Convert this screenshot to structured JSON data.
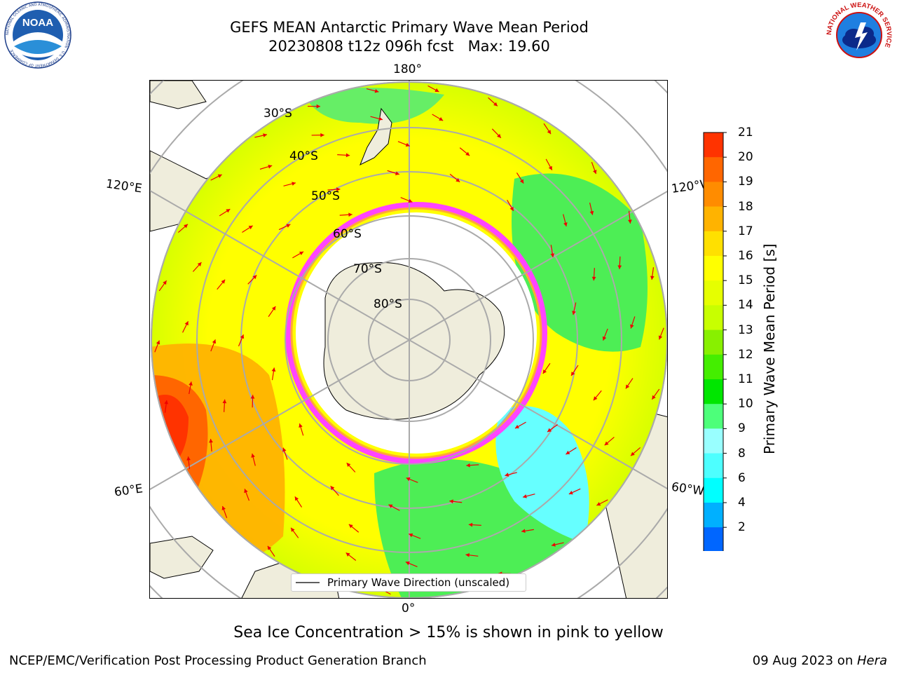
{
  "header": {
    "title_line1": "GEFS MEAN Antarctic Primary Wave Mean Period",
    "title_line2": "20230808 t12z 096h fcst   Max: 19.60"
  },
  "logos": {
    "left": {
      "name": "noaa-logo",
      "text": "NOAA",
      "ring_text": "NATIONAL OCEANIC AND ATMOSPHERIC ADMINISTRATION · U.S. DEPARTMENT OF COMMERCE"
    },
    "right": {
      "name": "nws-logo",
      "ring_text": "NATIONAL WEATHER SERVICE"
    }
  },
  "map": {
    "longitude_labels": [
      "180°",
      "120°E",
      "120°W",
      "60°E",
      "60°W",
      "0°"
    ],
    "latitude_labels": [
      "30°S",
      "40°S",
      "50°S",
      "60°S",
      "70°S",
      "80°S"
    ],
    "legend_label": "Primary Wave Direction (unscaled)"
  },
  "colorbar": {
    "label": "Primary Wave Mean Period [s]",
    "ticks": [
      "21",
      "20",
      "19",
      "18",
      "17",
      "16",
      "15",
      "14",
      "13",
      "12",
      "11",
      "10",
      "9",
      "8",
      "6",
      "4",
      "2"
    ],
    "colors": [
      "#ff0000",
      "#ff3300",
      "#ff6600",
      "#ff8c00",
      "#ffb300",
      "#ffe000",
      "#ffff00",
      "#e6ff00",
      "#c8ff00",
      "#88f000",
      "#44ee00",
      "#00e600",
      "#4dff7a",
      "#99ffff",
      "#4dffff",
      "#00ffff",
      "#00b0ff",
      "#0066ff"
    ],
    "extend_color": "#0000ee"
  },
  "footer": {
    "caption": "Sea Ice Concentration > 15% is shown in pink to yellow",
    "left": "NCEP/EMC/Verification Post Processing Product Generation Branch",
    "right_date": "09 Aug 2023 on ",
    "right_host": "Hera"
  }
}
